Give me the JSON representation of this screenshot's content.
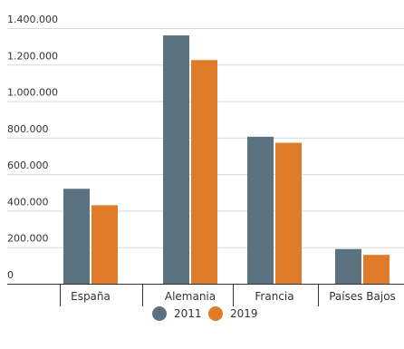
{
  "chart_data": {
    "type": "bar",
    "title": "",
    "xlabel": "",
    "ylabel": "",
    "categories": [
      "España",
      "Alemania",
      "Francia",
      "Países Bajos"
    ],
    "series": [
      {
        "name": "2011",
        "color": "#5b7380",
        "values": [
          520000,
          1360000,
          805000,
          190000
        ]
      },
      {
        "name": "2019",
        "color": "#e07b2a",
        "values": [
          430000,
          1225000,
          772000,
          158000
        ]
      }
    ],
    "y_ticks": [
      "0",
      "200.000",
      "400.000",
      "600.000",
      "800.000",
      "1.000.000",
      "1.200.000",
      "1.400.000"
    ],
    "ylim": [
      0,
      1400000
    ],
    "grid": true,
    "legend_position": "bottom-center"
  }
}
